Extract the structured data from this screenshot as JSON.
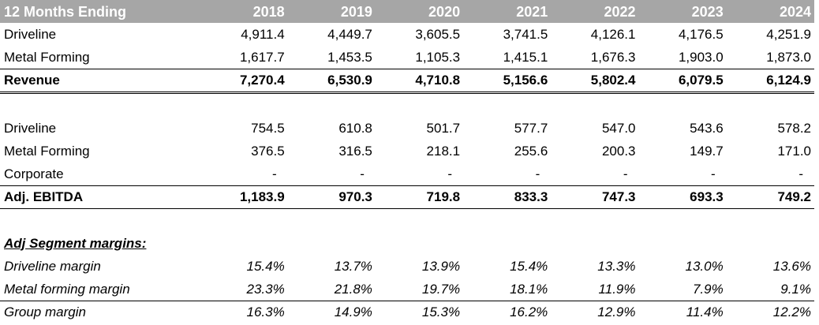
{
  "table": {
    "header_label": "12 Months Ending",
    "years": [
      "2018",
      "2019",
      "2020",
      "2021",
      "2022",
      "2023",
      "2024"
    ],
    "revenue_rows": [
      {
        "label": "Driveline",
        "values": [
          "4,911.4",
          "4,449.7",
          "3,605.5",
          "3,741.5",
          "4,126.1",
          "4,176.5",
          "4,251.9"
        ]
      },
      {
        "label": "Metal Forming",
        "values": [
          "1,617.7",
          "1,453.5",
          "1,105.3",
          "1,415.1",
          "1,676.3",
          "1,903.0",
          "1,873.0"
        ]
      }
    ],
    "revenue_total": {
      "label": "Revenue",
      "values": [
        "7,270.4",
        "6,530.9",
        "4,710.8",
        "5,156.6",
        "5,802.4",
        "6,079.5",
        "6,124.9"
      ]
    },
    "ebitda_rows": [
      {
        "label": "Driveline",
        "values": [
          "754.5",
          "610.8",
          "501.7",
          "577.7",
          "547.0",
          "543.6",
          "578.2"
        ]
      },
      {
        "label": "Metal Forming",
        "values": [
          "376.5",
          "316.5",
          "218.1",
          "255.6",
          "200.3",
          "149.7",
          "171.0"
        ]
      },
      {
        "label": "Corporate",
        "values": [
          "-",
          "-",
          "-",
          "-",
          "-",
          "-",
          "-"
        ]
      }
    ],
    "ebitda_total": {
      "label": "Adj. EBITDA",
      "values": [
        "1,183.9",
        "970.3",
        "719.8",
        "833.3",
        "747.3",
        "693.3",
        "749.2"
      ]
    },
    "margins_title": "Adj Segment margins:",
    "margin_rows": [
      {
        "label": "Driveline margin",
        "values": [
          "15.4%",
          "13.7%",
          "13.9%",
          "15.4%",
          "13.3%",
          "13.0%",
          "13.6%"
        ]
      },
      {
        "label": "Metal forming margin",
        "values": [
          "23.3%",
          "21.8%",
          "19.7%",
          "18.1%",
          "11.9%",
          "7.9%",
          "9.1%"
        ]
      }
    ],
    "group_margin": {
      "label": "Group margin",
      "values": [
        "16.3%",
        "14.9%",
        "15.3%",
        "16.2%",
        "12.9%",
        "11.4%",
        "12.2%"
      ]
    }
  }
}
